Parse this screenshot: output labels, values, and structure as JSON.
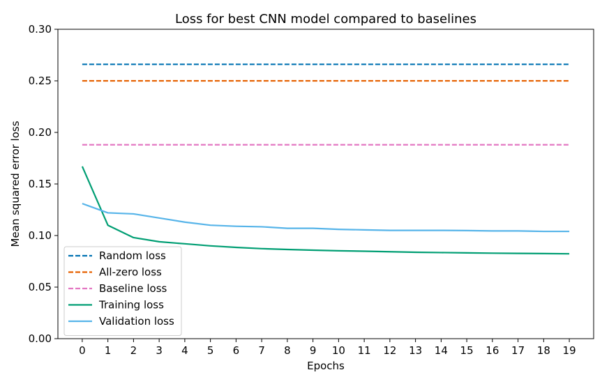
{
  "chart_data": {
    "type": "line",
    "title": "Loss for best CNN model compared to baselines",
    "xlabel": "Epochs",
    "ylabel": "Mean squared error loss",
    "x": [
      0,
      1,
      2,
      3,
      4,
      5,
      6,
      7,
      8,
      9,
      10,
      11,
      12,
      13,
      14,
      15,
      16,
      17,
      18,
      19
    ],
    "xlim": [
      -0.95,
      19.95
    ],
    "ylim": [
      0,
      0.3
    ],
    "yticks": [
      0,
      0.05,
      0.1,
      0.15,
      0.2,
      0.25,
      0.3
    ],
    "ytick_labels": [
      "0.00",
      "0.05",
      "0.10",
      "0.15",
      "0.20",
      "0.25",
      "0.30"
    ],
    "xtick_labels": [
      "0",
      "1",
      "2",
      "3",
      "4",
      "5",
      "6",
      "7",
      "8",
      "9",
      "10",
      "11",
      "12",
      "13",
      "14",
      "15",
      "16",
      "17",
      "18",
      "19"
    ],
    "grid": false,
    "legend_position": "bottom-left",
    "series": [
      {
        "name": "Random loss",
        "style": "dashed",
        "color": "#0072B2",
        "values": [
          0.266,
          0.266,
          0.266,
          0.266,
          0.266,
          0.266,
          0.266,
          0.266,
          0.266,
          0.266,
          0.266,
          0.266,
          0.266,
          0.266,
          0.266,
          0.266,
          0.266,
          0.266,
          0.266,
          0.266
        ]
      },
      {
        "name": "All-zero loss",
        "style": "dashed",
        "color": "#E66100",
        "values": [
          0.25,
          0.25,
          0.25,
          0.25,
          0.25,
          0.25,
          0.25,
          0.25,
          0.25,
          0.25,
          0.25,
          0.25,
          0.25,
          0.25,
          0.25,
          0.25,
          0.25,
          0.25,
          0.25,
          0.25
        ]
      },
      {
        "name": "Baseline loss",
        "style": "dashed",
        "color": "#E377C2",
        "values": [
          0.188,
          0.188,
          0.188,
          0.188,
          0.188,
          0.188,
          0.188,
          0.188,
          0.188,
          0.188,
          0.188,
          0.188,
          0.188,
          0.188,
          0.188,
          0.188,
          0.188,
          0.188,
          0.188,
          0.188
        ]
      },
      {
        "name": "Training loss",
        "style": "solid",
        "color": "#009E73",
        "values": [
          0.167,
          0.11,
          0.098,
          0.094,
          0.092,
          0.09,
          0.0885,
          0.0873,
          0.0865,
          0.0858,
          0.0852,
          0.0848,
          0.0843,
          0.0838,
          0.0835,
          0.0832,
          0.0829,
          0.0827,
          0.0825,
          0.0823
        ]
      },
      {
        "name": "Validation loss",
        "style": "solid",
        "color": "#56B4E9",
        "values": [
          0.131,
          0.122,
          0.121,
          0.117,
          0.113,
          0.11,
          0.109,
          0.1085,
          0.107,
          0.107,
          0.106,
          0.1055,
          0.105,
          0.105,
          0.105,
          0.1048,
          0.1045,
          0.1045,
          0.104,
          0.104
        ]
      }
    ]
  }
}
